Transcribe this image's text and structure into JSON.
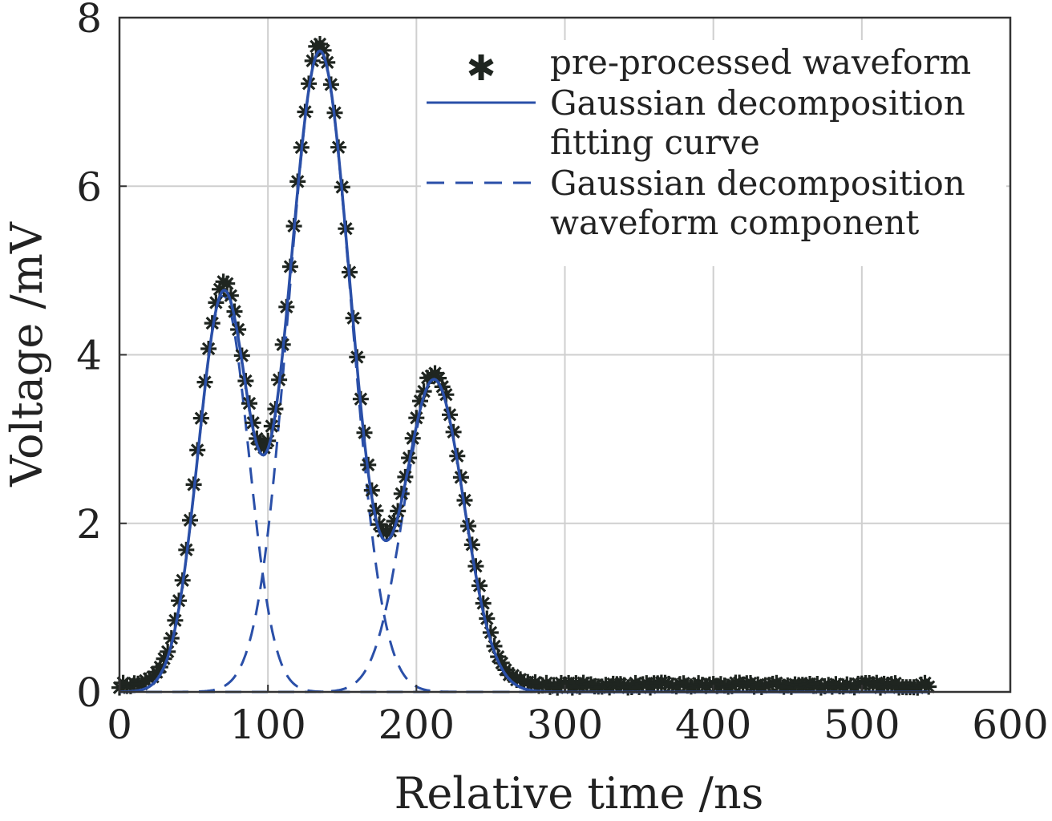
{
  "chart_data": {
    "type": "line",
    "xlabel": "Relative time /ns",
    "ylabel": "Voltage /mV",
    "xlim": [
      0,
      600
    ],
    "ylim": [
      0,
      8
    ],
    "xticks": [
      0,
      100,
      200,
      300,
      400,
      500,
      600
    ],
    "yticks": [
      0,
      2,
      4,
      6,
      8
    ],
    "grid": true,
    "legend_position": "top-right",
    "legend": {
      "points_label": "pre-processed waveform",
      "fit_label_line1": "Gaussian decomposition",
      "fit_label_line2": "fitting curve",
      "component_label_line1": "Gaussian decomposition",
      "component_label_line2": "waveform component"
    },
    "series": [
      {
        "name": "pre-processed waveform",
        "style": "marker-star",
        "color": "#1f2520",
        "x_start": 0,
        "x_end": 545,
        "x_step": 2.5,
        "baseline": 0.08,
        "gaussians": [
          {
            "amplitude": 4.7,
            "center": 70,
            "sigma": 17
          },
          {
            "amplitude": 7.6,
            "center": 135,
            "sigma": 21
          },
          {
            "amplitude": 3.7,
            "center": 212,
            "sigma": 20
          }
        ]
      },
      {
        "name": "Gaussian decomposition fitting curve",
        "style": "solid",
        "color": "#2a4fa8",
        "x_start": 0,
        "x_end": 545,
        "gaussians": [
          {
            "amplitude": 4.7,
            "center": 70,
            "sigma": 17
          },
          {
            "amplitude": 7.6,
            "center": 135,
            "sigma": 21
          },
          {
            "amplitude": 3.7,
            "center": 212,
            "sigma": 20
          }
        ]
      },
      {
        "name": "Gaussian decomposition waveform component",
        "style": "dashed",
        "color": "#2a4fa8",
        "x_start": 0,
        "x_end": 545,
        "components": [
          {
            "amplitude": 4.7,
            "center": 70,
            "sigma": 17
          },
          {
            "amplitude": 7.6,
            "center": 135,
            "sigma": 21
          },
          {
            "amplitude": 3.7,
            "center": 212,
            "sigma": 20
          }
        ]
      }
    ]
  }
}
